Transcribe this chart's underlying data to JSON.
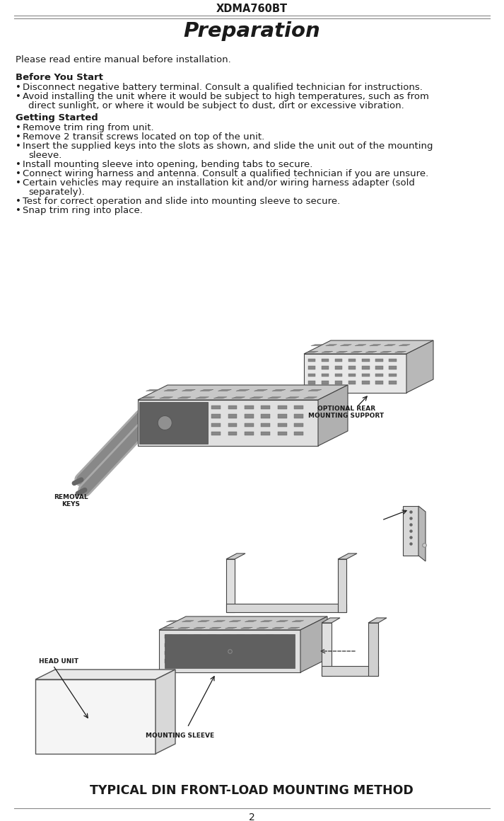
{
  "bg_color": "#ffffff",
  "header_text": "XDMA760BT",
  "title_text": "Preparation",
  "intro_text": "Please read entire manual before installation.",
  "section1_header": "Before You Start",
  "section1_bullets": [
    "Disconnect negative battery terminal. Consult a qualified technician for instructions.",
    "Avoid installing the unit where it would be subject to high temperatures, such as from\n   direct sunlight, or where it would be subject to dust, dirt or excessive vibration."
  ],
  "section2_header": "Getting Started",
  "section2_bullets": [
    "Remove trim ring from unit.",
    "Remove 2 transit screws located on top of the unit.",
    "Insert the supplied keys into the slots as shown, and slide the unit out of the mounting\n   sleeve.",
    "Install mounting sleeve into opening, bending tabs to secure.",
    "Connect wiring harness and antenna. Consult a qualified technician if you are unsure.",
    "Certain vehicles may require an installation kit and/or wiring harness adapter (sold\n   separately).",
    "Test for correct operation and slide into mounting sleeve to secure.",
    "Snap trim ring into place."
  ],
  "label_removal_keys": "REMOVAL\nKEYS",
  "label_optional_rear": "OPTIONAL REAR\nMOUNTING SUPPORT",
  "label_head_unit": "HEAD UNIT",
  "label_mounting_sleeve": "MOUNTING SLEEVE",
  "footer_text": "TYPICAL DIN FRONT-LOAD MOUNTING METHOD",
  "page_number": "2",
  "text_color": "#1a1a1a",
  "header_fontsize": 10.5,
  "title_fontsize": 21,
  "body_fontsize": 9.5,
  "bold_fontsize": 9.5,
  "footer_fontsize": 12.5,
  "label_fontsize": 6.5
}
